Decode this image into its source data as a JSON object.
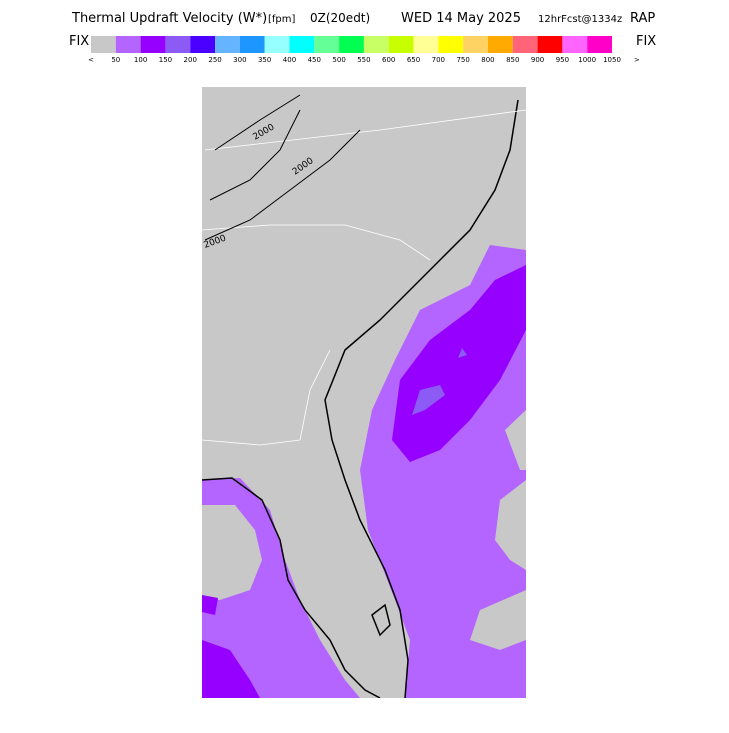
{
  "header": {
    "title": "Thermal Updraft Velocity (W*)",
    "units": "[fpm]",
    "time": "0Z(20edt)",
    "date": "WED 14 May 2025",
    "forecast": "12hrFcst@1334z",
    "model": "RAP"
  },
  "legend": {
    "left": "FIX",
    "right": "FIX",
    "under": "<",
    "over": ">",
    "colors": [
      "#c8c8c8",
      "#b464ff",
      "#9600ff",
      "#8c5af5",
      "#4b00ff",
      "#64b4ff",
      "#1e96ff",
      "#96ffff",
      "#00ffff",
      "#64ff96",
      "#00ff50",
      "#c8ff64",
      "#c8ff00",
      "#ffff96",
      "#ffff00",
      "#ffd264",
      "#ffaa00",
      "#ff6478",
      "#ff0000",
      "#ff64ff",
      "#ff00c8"
    ],
    "labels": [
      50,
      100,
      150,
      200,
      250,
      300,
      350,
      400,
      450,
      500,
      550,
      600,
      650,
      700,
      750,
      800,
      850,
      900,
      950,
      1000,
      1050
    ]
  },
  "map": {
    "contour_labels": [
      "2000",
      "2000",
      "2000"
    ]
  }
}
